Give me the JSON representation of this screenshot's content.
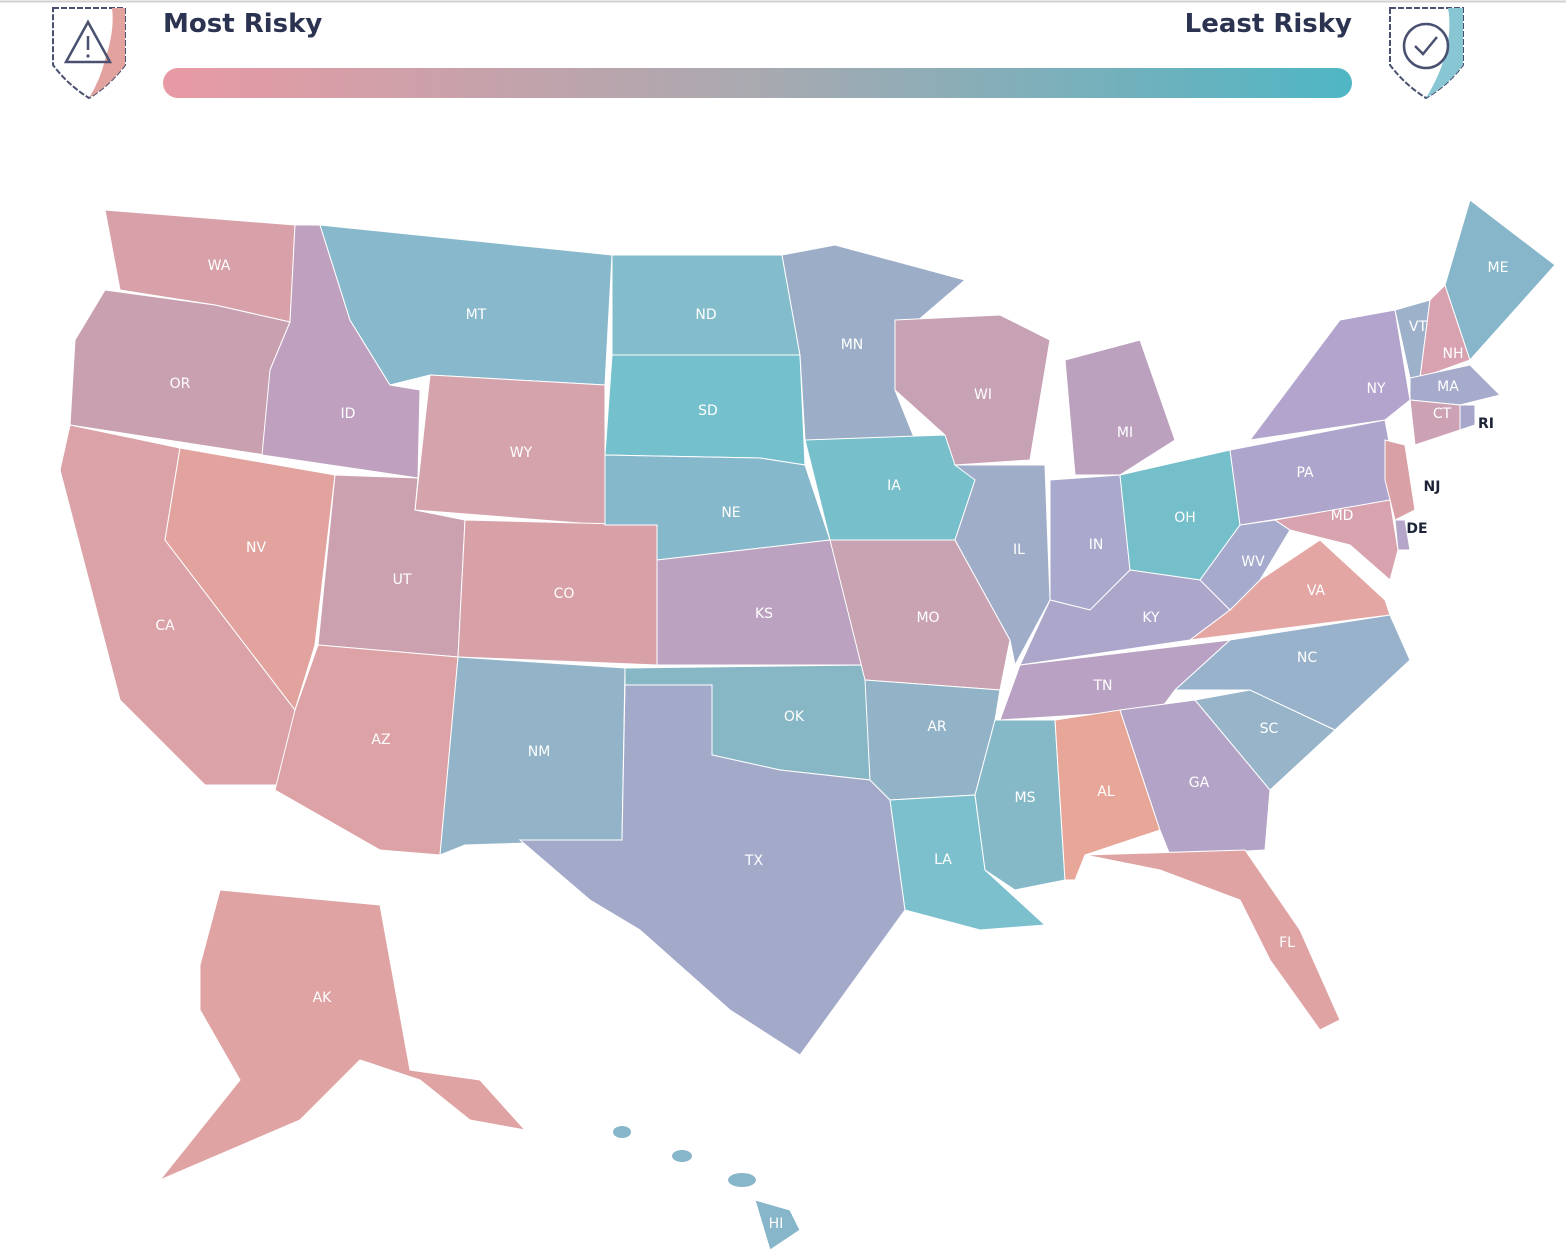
{
  "legend": {
    "left_label": "Most Risky",
    "right_label": "Least Risky",
    "left_color": "#e99aa4",
    "right_color": "#4fb6c4"
  },
  "states": [
    {
      "label": "WA",
      "color": "#d8a0a8"
    },
    {
      "label": "OR",
      "color": "#c8a0b0"
    },
    {
      "label": "CA",
      "color": "#dba2a8"
    },
    {
      "label": "NV",
      "color": "#e2a39e"
    },
    {
      "label": "ID",
      "color": "#bfa0bf"
    },
    {
      "label": "MT",
      "color": "#88b8cb"
    },
    {
      "label": "WY",
      "color": "#d5a3ab"
    },
    {
      "label": "UT",
      "color": "#cca1af"
    },
    {
      "label": "CO",
      "color": "#d8a1a8"
    },
    {
      "label": "AZ",
      "color": "#dda2a6"
    },
    {
      "label": "NM",
      "color": "#93b4c8"
    },
    {
      "label": "ND",
      "color": "#83bccb"
    },
    {
      "label": "SD",
      "color": "#74c0cc"
    },
    {
      "label": "NE",
      "color": "#85b8cb"
    },
    {
      "label": "KS",
      "color": "#bba2c0"
    },
    {
      "label": "OK",
      "color": "#87b6c4"
    },
    {
      "label": "TX",
      "color": "#a3a9c9"
    },
    {
      "label": "MN",
      "color": "#9cadc7"
    },
    {
      "label": "IA",
      "color": "#77bfcb"
    },
    {
      "label": "MO",
      "color": "#c9a3b2"
    },
    {
      "label": "AR",
      "color": "#92b2c7"
    },
    {
      "label": "LA",
      "color": "#7cc0cd"
    },
    {
      "label": "WI",
      "color": "#c6a2b4"
    },
    {
      "label": "IL",
      "color": "#9fadc9"
    },
    {
      "label": "MI",
      "color": "#bca1bf"
    },
    {
      "label": "IN",
      "color": "#a8a9cc"
    },
    {
      "label": "OH",
      "color": "#74bfca"
    },
    {
      "label": "KY",
      "color": "#ada6cb"
    },
    {
      "label": "TN",
      "color": "#b8a1c2"
    },
    {
      "label": "MS",
      "color": "#86b9c8"
    },
    {
      "label": "AL",
      "color": "#e7a697"
    },
    {
      "label": "GA",
      "color": "#b3a3c6"
    },
    {
      "label": "FL",
      "color": "#e0a3a3"
    },
    {
      "label": "SC",
      "color": "#97b4c9"
    },
    {
      "label": "NC",
      "color": "#98b2cb"
    },
    {
      "label": "VA",
      "color": "#e4a6a2"
    },
    {
      "label": "WV",
      "color": "#a6aacc"
    },
    {
      "label": "PA",
      "color": "#aea5cc"
    },
    {
      "label": "NY",
      "color": "#b2a4cc"
    },
    {
      "label": "VT",
      "color": "#9db1ca"
    },
    {
      "label": "NH",
      "color": "#d8a2b0"
    },
    {
      "label": "ME",
      "color": "#87b6ca"
    },
    {
      "label": "MA",
      "color": "#a6abcc"
    },
    {
      "label": "CT",
      "color": "#cca1b3"
    },
    {
      "label": "RI",
      "color": "#a7a7cb"
    },
    {
      "label": "NJ",
      "color": "#d9a0a6"
    },
    {
      "label": "DE",
      "color": "#b5a5c8"
    },
    {
      "label": "MD",
      "color": "#d8a2ae"
    },
    {
      "label": "AK",
      "color": "#e0a3a3"
    },
    {
      "label": "HI",
      "color": "#87b5c9"
    }
  ]
}
